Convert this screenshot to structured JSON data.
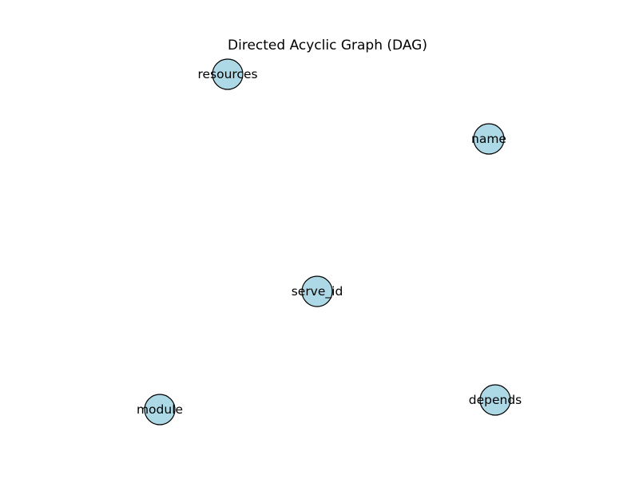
{
  "diagram": {
    "title": "Directed Acyclic Graph (DAG)",
    "node_color": "#add8e6",
    "node_border_color": "#000000",
    "nodes": [
      {
        "id": "resources",
        "label": "resources"
      },
      {
        "id": "name",
        "label": "name"
      },
      {
        "id": "serve_id",
        "label": "serve_id"
      },
      {
        "id": "module",
        "label": "module"
      },
      {
        "id": "depends",
        "label": "depends"
      }
    ],
    "edges": []
  }
}
